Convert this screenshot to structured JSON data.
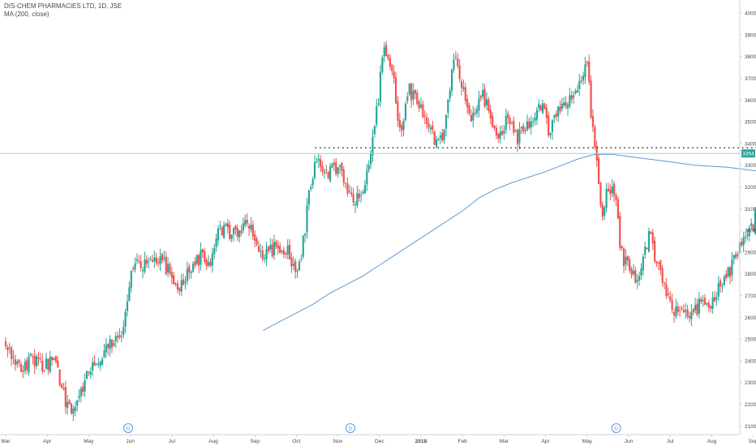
{
  "legend": {
    "symbol_line": "DIS-CHEM PHARMACIES LTD, 1D, JSE",
    "indicator_line": "MA (200, close)"
  },
  "colors": {
    "up": "#26a69a",
    "down": "#ef5350",
    "ma": "#5b9bd5",
    "price_line": "#9fd6ce",
    "label_bg": "#26a69a",
    "dotted": "#333333",
    "event": "#5b9bd5"
  },
  "chart_data": {
    "type": "candlestick",
    "title": "DIS-CHEM PHARMACIES LTD, 1D, JSE",
    "ylim": [
      2060,
      4060
    ],
    "y_ticks": [
      2100,
      2200,
      2300,
      2400,
      2500,
      2600,
      2700,
      2800,
      2900,
      3000,
      3100,
      3200,
      3300,
      3400,
      3500,
      3600,
      3700,
      3800,
      3900,
      4000
    ],
    "y_tick_labels": [
      "2100",
      "2200",
      "2300",
      "2400",
      "2500",
      "2600",
      "2700",
      "2800",
      "2900",
      "3000",
      "3100",
      "3200",
      "3300",
      "3400",
      "3500",
      "3600",
      "3700",
      "3800",
      "3900",
      "4000"
    ],
    "x_ticks": [
      {
        "label": "Mar",
        "month": 0
      },
      {
        "label": "Apr",
        "month": 1
      },
      {
        "label": "May",
        "month": 2
      },
      {
        "label": "Jun",
        "month": 3
      },
      {
        "label": "Jul",
        "month": 4
      },
      {
        "label": "Aug",
        "month": 5
      },
      {
        "label": "Sep",
        "month": 6
      },
      {
        "label": "Oct",
        "month": 7
      },
      {
        "label": "Nov",
        "month": 8
      },
      {
        "label": "Dec",
        "month": 9
      },
      {
        "label": "2018",
        "month": 10
      },
      {
        "label": "Feb",
        "month": 11
      },
      {
        "label": "Mar",
        "month": 12
      },
      {
        "label": "Apr",
        "month": 13
      },
      {
        "label": "May",
        "month": 14
      },
      {
        "label": "Jun",
        "month": 15
      },
      {
        "label": "Jul",
        "month": 16
      },
      {
        "label": "Aug",
        "month": 17
      },
      {
        "label": "Sep",
        "month": 18
      }
    ],
    "price_path": [
      [
        0,
        2490
      ],
      [
        0.3,
        2360
      ],
      [
        0.6,
        2400
      ],
      [
        1.0,
        2380
      ],
      [
        1.2,
        2420
      ],
      [
        1.35,
        2260
      ],
      [
        1.5,
        2190
      ],
      [
        1.65,
        2170
      ],
      [
        1.9,
        2300
      ],
      [
        2.15,
        2400
      ],
      [
        2.4,
        2450
      ],
      [
        2.6,
        2480
      ],
      [
        2.8,
        2500
      ],
      [
        3.0,
        2780
      ],
      [
        3.1,
        2870
      ],
      [
        3.3,
        2830
      ],
      [
        3.5,
        2880
      ],
      [
        3.8,
        2850
      ],
      [
        4.0,
        2780
      ],
      [
        4.2,
        2730
      ],
      [
        4.4,
        2800
      ],
      [
        4.7,
        2880
      ],
      [
        4.9,
        2820
      ],
      [
        5.1,
        3000
      ],
      [
        5.3,
        3000
      ],
      [
        5.6,
        2980
      ],
      [
        5.8,
        3050
      ],
      [
        6.0,
        2960
      ],
      [
        6.2,
        2880
      ],
      [
        6.5,
        2920
      ],
      [
        6.8,
        2900
      ],
      [
        6.95,
        2800
      ],
      [
        7.1,
        2850
      ],
      [
        7.3,
        3150
      ],
      [
        7.5,
        3340
      ],
      [
        7.7,
        3250
      ],
      [
        8.0,
        3300
      ],
      [
        8.2,
        3200
      ],
      [
        8.4,
        3130
      ],
      [
        8.6,
        3180
      ],
      [
        8.85,
        3420
      ],
      [
        9.0,
        3650
      ],
      [
        9.1,
        3850
      ],
      [
        9.3,
        3750
      ],
      [
        9.5,
        3420
      ],
      [
        9.7,
        3650
      ],
      [
        10.0,
        3550
      ],
      [
        10.2,
        3480
      ],
      [
        10.4,
        3380
      ],
      [
        10.6,
        3500
      ],
      [
        10.8,
        3820
      ],
      [
        11.0,
        3650
      ],
      [
        11.2,
        3520
      ],
      [
        11.5,
        3620
      ],
      [
        11.7,
        3500
      ],
      [
        11.9,
        3420
      ],
      [
        12.1,
        3520
      ],
      [
        12.3,
        3420
      ],
      [
        12.6,
        3480
      ],
      [
        12.9,
        3580
      ],
      [
        13.1,
        3450
      ],
      [
        13.3,
        3560
      ],
      [
        13.6,
        3600
      ],
      [
        13.8,
        3680
      ],
      [
        14.0,
        3760
      ],
      [
        14.15,
        3420
      ],
      [
        14.25,
        3300
      ],
      [
        14.35,
        3060
      ],
      [
        14.5,
        3190
      ],
      [
        14.7,
        3150
      ],
      [
        14.8,
        2900
      ],
      [
        15.0,
        2820
      ],
      [
        15.2,
        2760
      ],
      [
        15.5,
        2980
      ],
      [
        15.7,
        2840
      ],
      [
        15.9,
        2720
      ],
      [
        16.1,
        2620
      ],
      [
        16.3,
        2650
      ],
      [
        16.5,
        2600
      ],
      [
        16.8,
        2680
      ],
      [
        17.0,
        2650
      ],
      [
        17.2,
        2740
      ],
      [
        17.4,
        2800
      ],
      [
        17.6,
        2880
      ],
      [
        17.8,
        2980
      ],
      [
        18.0,
        3020
      ],
      [
        18.1,
        3120
      ],
      [
        18.2,
        3260
      ],
      [
        18.3,
        3354
      ]
    ],
    "ma_path": [
      [
        6.2,
        2540
      ],
      [
        6.6,
        2580
      ],
      [
        7.0,
        2620
      ],
      [
        7.4,
        2660
      ],
      [
        7.8,
        2710
      ],
      [
        8.2,
        2750
      ],
      [
        8.6,
        2790
      ],
      [
        9.0,
        2840
      ],
      [
        9.4,
        2890
      ],
      [
        9.8,
        2940
      ],
      [
        10.2,
        2990
      ],
      [
        10.6,
        3040
      ],
      [
        11.0,
        3090
      ],
      [
        11.4,
        3150
      ],
      [
        11.8,
        3190
      ],
      [
        12.2,
        3220
      ],
      [
        12.6,
        3245
      ],
      [
        13.0,
        3270
      ],
      [
        13.4,
        3300
      ],
      [
        13.8,
        3330
      ],
      [
        14.2,
        3350
      ],
      [
        14.6,
        3350
      ],
      [
        15.0,
        3340
      ],
      [
        15.4,
        3330
      ],
      [
        15.8,
        3320
      ],
      [
        16.2,
        3310
      ],
      [
        16.6,
        3300
      ],
      [
        17.0,
        3295
      ],
      [
        17.4,
        3290
      ],
      [
        17.8,
        3280
      ],
      [
        18.2,
        3270
      ]
    ],
    "resistance_level": 3380,
    "resistance_from_month": 7.45,
    "last_price": 3354,
    "last_price_label": "3354",
    "events": [
      {
        "month": 2.95,
        "label": "D"
      },
      {
        "month": 8.3,
        "label": "D"
      },
      {
        "month": 14.7,
        "label": "D"
      }
    ],
    "grid": false
  }
}
